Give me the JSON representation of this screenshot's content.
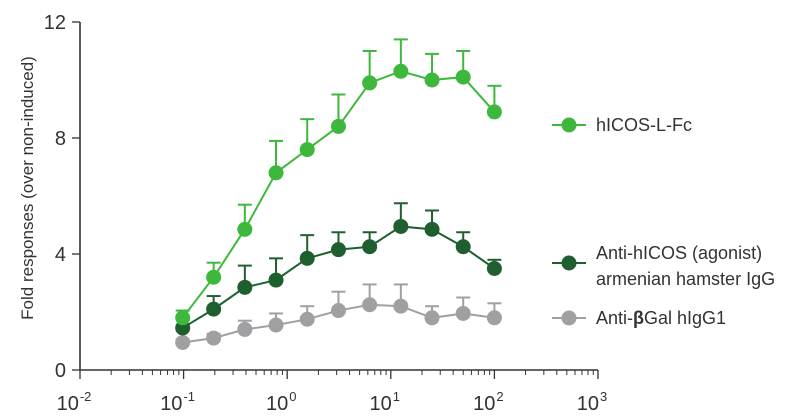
{
  "chart_data": {
    "type": "line",
    "xscale": "log",
    "xlim": [
      0.01,
      1000
    ],
    "ylim": [
      0,
      12
    ],
    "ylabel": "Fold responses (over non-induced)",
    "xlabel": "",
    "x_tick_labels": [
      {
        "base": "10",
        "exp": "-2",
        "value": 0.01
      },
      {
        "base": "10",
        "exp": "-1",
        "value": 0.1
      },
      {
        "base": "10",
        "exp": "0",
        "value": 1
      },
      {
        "base": "10",
        "exp": "1",
        "value": 10
      },
      {
        "base": "10",
        "exp": "2",
        "value": 100
      },
      {
        "base": "10",
        "exp": "3",
        "value": 1000
      }
    ],
    "y_tick_labels": [
      "0",
      "4",
      "8",
      "12"
    ],
    "y_ticks": [
      0,
      4,
      8,
      12
    ],
    "x": [
      0.098,
      0.195,
      0.39,
      0.78,
      1.56,
      3.125,
      6.25,
      12.5,
      25,
      50,
      100
    ],
    "series": [
      {
        "name": "hICOS-L-Fc",
        "color": "#3db83d",
        "values": [
          1.8,
          3.2,
          4.85,
          6.8,
          7.6,
          8.4,
          9.9,
          10.3,
          10.0,
          10.1,
          8.9
        ],
        "errors": [
          0.25,
          0.5,
          0.85,
          1.1,
          1.05,
          1.1,
          1.1,
          1.1,
          0.9,
          0.9,
          0.9
        ]
      },
      {
        "name": "Anti-hICOS (agonist) armenian hamster IgG",
        "name_lines": [
          "Anti-hICOS (agonist)",
          "armenian hamster IgG"
        ],
        "color": "#1f5f2f",
        "values": [
          1.45,
          2.1,
          2.85,
          3.1,
          3.85,
          4.15,
          4.25,
          4.95,
          4.85,
          4.25,
          3.5
        ],
        "errors": [
          0.35,
          0.45,
          0.75,
          0.75,
          0.8,
          0.6,
          0.5,
          0.8,
          0.65,
          0.5,
          0.3
        ]
      },
      {
        "name": "Anti-βGal hIgG1",
        "name_prefix": "Anti-",
        "name_symbol": "β",
        "name_suffix": "Gal hIgG1",
        "color": "#a0a0a2",
        "values": [
          0.95,
          1.1,
          1.4,
          1.55,
          1.75,
          2.05,
          2.25,
          2.2,
          1.8,
          1.95,
          1.8
        ],
        "errors": [
          0.1,
          0.15,
          0.3,
          0.4,
          0.45,
          0.65,
          0.7,
          0.75,
          0.4,
          0.55,
          0.5
        ]
      }
    ],
    "legend_position": "right"
  }
}
